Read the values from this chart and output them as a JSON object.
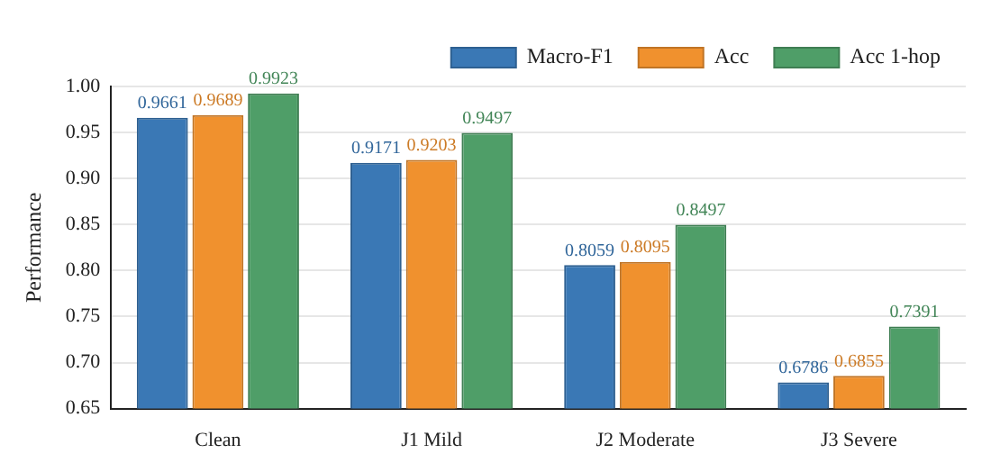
{
  "chart_data": {
    "type": "bar",
    "ylabel": "Performance",
    "categories": [
      "Clean",
      "J1 Mild",
      "J2 Moderate",
      "J3 Severe"
    ],
    "series": [
      {
        "name": "Macro-F1",
        "color": "#3a78b5",
        "values": [
          0.9661,
          0.9171,
          0.8059,
          0.6786
        ]
      },
      {
        "name": "Acc",
        "color": "#f0912e",
        "values": [
          0.9689,
          0.9203,
          0.8095,
          0.6855
        ]
      },
      {
        "name": "Acc 1-hop",
        "color": "#4f9e68",
        "values": [
          0.9923,
          0.9497,
          0.8497,
          0.7391
        ]
      }
    ],
    "ylim": [
      0.65,
      1.0
    ],
    "yticks": [
      {
        "value": 0.65,
        "label": "0.65"
      },
      {
        "value": 0.7,
        "label": "0.70"
      },
      {
        "value": 0.75,
        "label": "0.75"
      },
      {
        "value": 0.8,
        "label": "0.80"
      },
      {
        "value": 0.85,
        "label": "0.85"
      },
      {
        "value": 0.9,
        "label": "0.90"
      },
      {
        "value": 0.95,
        "label": "0.95"
      },
      {
        "value": 1.0,
        "label": "1.00"
      }
    ],
    "grid": "y",
    "legend": "top right",
    "data_labels": true
  }
}
